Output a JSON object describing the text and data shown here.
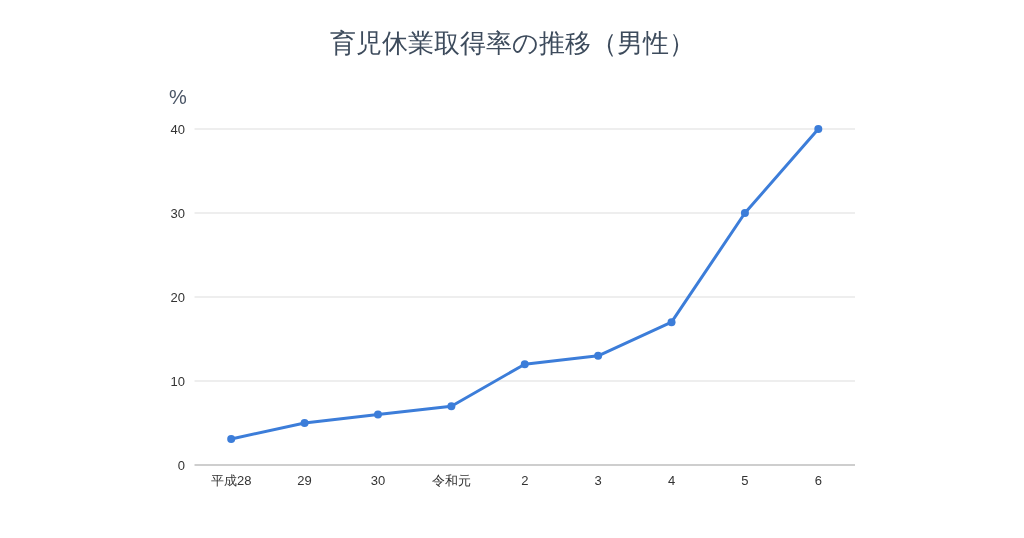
{
  "chart_data": {
    "type": "line",
    "title": "育児休業取得率の推移（男性）",
    "ylabel": "%",
    "categories": [
      "平成28",
      "29",
      "30",
      "令和元",
      "2",
      "3",
      "4",
      "5",
      "6"
    ],
    "series": [
      {
        "color": "#3c7dd9",
        "values": [
          3.1,
          5,
          6,
          7,
          12,
          13,
          17,
          30,
          40
        ]
      }
    ],
    "ylim": [
      0,
      40
    ],
    "yticks": [
      0,
      10,
      20,
      30,
      40
    ],
    "grid": "y",
    "marker": "circle",
    "line_style": "solid"
  }
}
